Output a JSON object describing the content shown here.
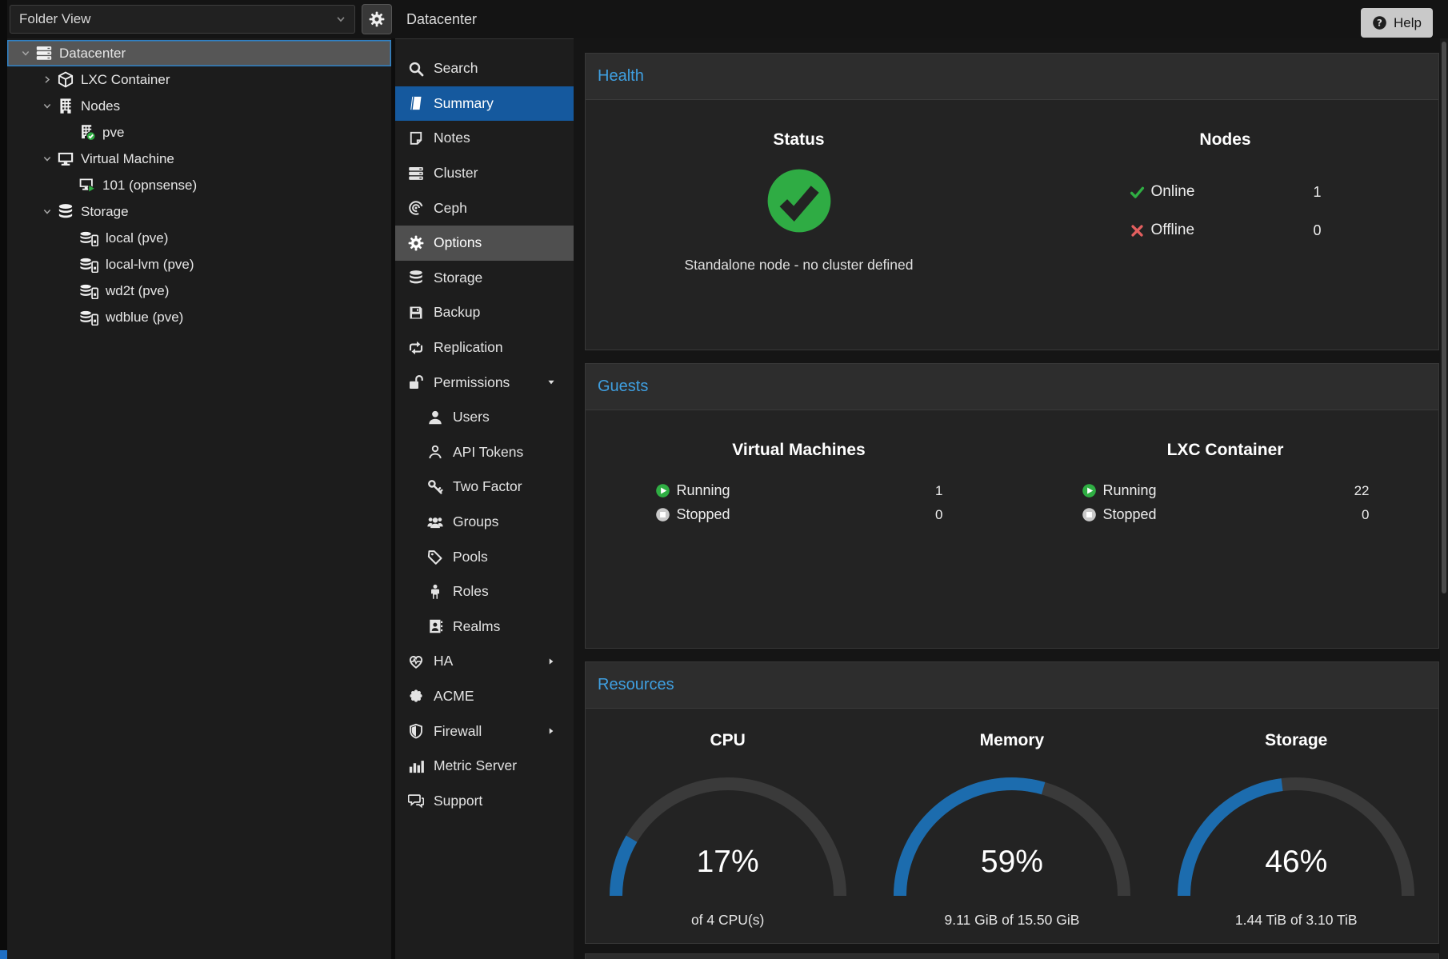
{
  "window": {
    "help_label": "Help"
  },
  "colors": {
    "selection_blue": "#15599e",
    "panel_title_blue": "#3f9fe0",
    "gauge_value_blue": "#1c6cae",
    "gauge_track": "#3a3a3a",
    "ok_green": "#2fae43",
    "error_red": "#e35f5f"
  },
  "sidebar": {
    "view_selector": {
      "value": "Folder View"
    },
    "tree": [
      {
        "label": "Datacenter",
        "icon": "server-stack",
        "indent": 0,
        "expand": "open",
        "selected": true
      },
      {
        "label": "LXC Container",
        "icon": "cube",
        "indent": 1,
        "expand": "closed",
        "selected": false
      },
      {
        "label": "Nodes",
        "icon": "building",
        "indent": 1,
        "expand": "open",
        "selected": false
      },
      {
        "label": "pve",
        "icon": "building-check",
        "indent": 2,
        "expand": "none",
        "selected": false
      },
      {
        "label": "Virtual Machine",
        "icon": "monitor",
        "indent": 1,
        "expand": "open",
        "selected": false
      },
      {
        "label": "101 (opnsense)",
        "icon": "monitor-play",
        "indent": 2,
        "expand": "none",
        "selected": false
      },
      {
        "label": "Storage",
        "icon": "database",
        "indent": 1,
        "expand": "open",
        "selected": false
      },
      {
        "label": "local (pve)",
        "icon": "database-drive",
        "indent": 2,
        "expand": "none",
        "selected": false
      },
      {
        "label": "local-lvm (pve)",
        "icon": "database-drive",
        "indent": 2,
        "expand": "none",
        "selected": false
      },
      {
        "label": "wd2t (pve)",
        "icon": "database-drive",
        "indent": 2,
        "expand": "none",
        "selected": false
      },
      {
        "label": "wdblue (pve)",
        "icon": "database-drive",
        "indent": 2,
        "expand": "none",
        "selected": false
      }
    ]
  },
  "menu": {
    "title": "Datacenter",
    "items": [
      {
        "label": "Search",
        "icon": "search"
      },
      {
        "label": "Summary",
        "icon": "book",
        "selected": true
      },
      {
        "label": "Notes",
        "icon": "note"
      },
      {
        "label": "Cluster",
        "icon": "server-stack"
      },
      {
        "label": "Ceph",
        "icon": "ceph"
      },
      {
        "label": "Options",
        "icon": "gear",
        "hover": true
      },
      {
        "label": "Storage",
        "icon": "database"
      },
      {
        "label": "Backup",
        "icon": "floppy"
      },
      {
        "label": "Replication",
        "icon": "replication"
      },
      {
        "label": "Permissions",
        "icon": "unlock",
        "caret": "down"
      },
      {
        "label": "Users",
        "icon": "user",
        "indent": 1
      },
      {
        "label": "API Tokens",
        "icon": "user-outline",
        "indent": 1
      },
      {
        "label": "Two Factor",
        "icon": "key",
        "indent": 1
      },
      {
        "label": "Groups",
        "icon": "users",
        "indent": 1
      },
      {
        "label": "Pools",
        "icon": "tag",
        "indent": 1
      },
      {
        "label": "Roles",
        "icon": "person",
        "indent": 1
      },
      {
        "label": "Realms",
        "icon": "address-book",
        "indent": 1
      },
      {
        "label": "HA",
        "icon": "heartbeat",
        "caret": "right"
      },
      {
        "label": "ACME",
        "icon": "badge"
      },
      {
        "label": "Firewall",
        "icon": "shield",
        "caret": "right"
      },
      {
        "label": "Metric Server",
        "icon": "bar-chart"
      },
      {
        "label": "Support",
        "icon": "comments"
      }
    ]
  },
  "panels": {
    "health": {
      "title": "Health",
      "status": {
        "heading": "Status",
        "state_icon": "big-check",
        "message": "Standalone node - no cluster defined"
      },
      "nodes": {
        "heading": "Nodes",
        "rows": [
          {
            "icon": "check",
            "label": "Online",
            "value": "1"
          },
          {
            "icon": "cross",
            "label": "Offline",
            "value": "0"
          }
        ]
      }
    },
    "guests": {
      "title": "Guests",
      "groups": [
        {
          "heading": "Virtual Machines",
          "rows": [
            {
              "icon": "play",
              "label": "Running",
              "value": "1"
            },
            {
              "icon": "stop",
              "label": "Stopped",
              "value": "0"
            }
          ]
        },
        {
          "heading": "LXC Container",
          "rows": [
            {
              "icon": "play",
              "label": "Running",
              "value": "22"
            },
            {
              "icon": "stop",
              "label": "Stopped",
              "value": "0"
            }
          ]
        }
      ]
    },
    "resources": {
      "title": "Resources"
    }
  },
  "chart_data": {
    "type": "gauge",
    "title": "Resources",
    "arc_degrees": 180,
    "gauges": [
      {
        "label": "CPU",
        "percent": 17,
        "detail": "of 4 CPU(s)"
      },
      {
        "label": "Memory",
        "percent": 59,
        "detail": "9.11 GiB of 15.50 GiB"
      },
      {
        "label": "Storage",
        "percent": 46,
        "detail": "1.44 TiB of 3.10 TiB"
      }
    ],
    "colors": {
      "track": "#3a3a3a",
      "value": "#1c6cae"
    }
  }
}
